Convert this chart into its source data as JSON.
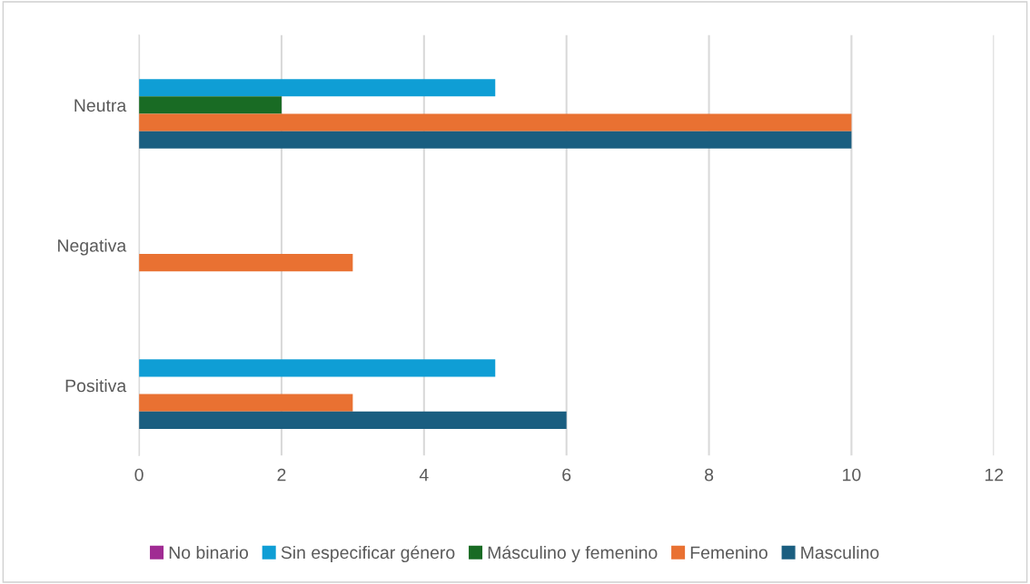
{
  "chart_data": {
    "type": "bar",
    "orientation": "horizontal",
    "categories": [
      "Neutra",
      "Negativa",
      "Positiva"
    ],
    "series": [
      {
        "name": "No binario",
        "color": "#a02b93",
        "values": [
          0,
          0,
          0
        ]
      },
      {
        "name": "Sin especificar género",
        "color": "#0f9ed5",
        "values": [
          5,
          0,
          5
        ]
      },
      {
        "name": "Másculino y femenino",
        "color": "#196b24",
        "values": [
          2,
          0,
          0
        ]
      },
      {
        "name": "Femenino",
        "color": "#e97132",
        "values": [
          10,
          3,
          3
        ]
      },
      {
        "name": "Masculino",
        "color": "#1a5e80",
        "values": [
          10,
          0,
          6
        ]
      }
    ],
    "xlim": [
      0,
      12
    ],
    "xticks": [
      0,
      2,
      4,
      6,
      8,
      10,
      12
    ],
    "grid": "x",
    "legend": "bottom"
  }
}
